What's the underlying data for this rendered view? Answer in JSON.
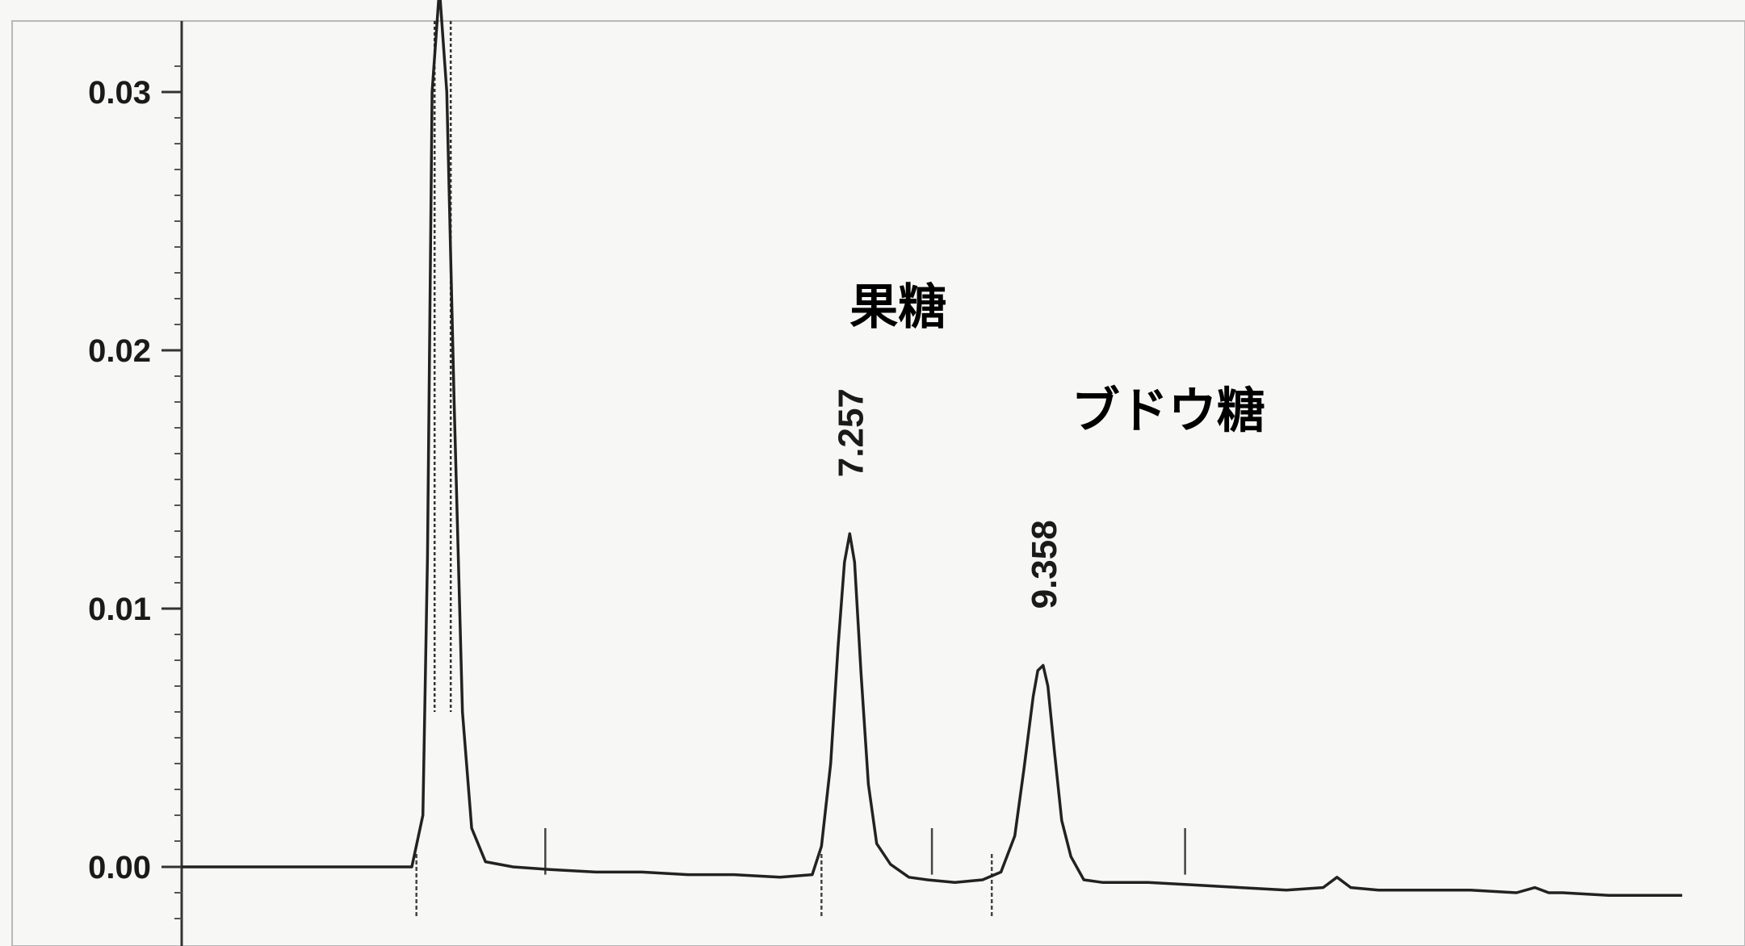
{
  "chart_data": {
    "type": "line",
    "title": "",
    "xlabel": "",
    "ylabel": "",
    "ylim": [
      -0.003,
      0.033
    ],
    "xlim": [
      0,
      16.3
    ],
    "grid": false,
    "legend": "none",
    "y_ticks": [
      "0.03",
      "0.02",
      "0.01",
      "0.00"
    ],
    "y_tick_values": [
      0.03,
      0.02,
      0.01,
      0.0
    ],
    "peaks": [
      {
        "retention_time": 7.257,
        "label": "7.257",
        "height": 0.0129,
        "name": "果糖"
      },
      {
        "retention_time": 9.358,
        "label": "9.358",
        "height": 0.0078,
        "name": "ブドウ糖"
      }
    ],
    "solvent_peak": {
      "retention_time": 2.8,
      "height": 0.034
    },
    "integration_markers": [
      2.55,
      3.95,
      6.95,
      8.15,
      8.8,
      10.9
    ],
    "series": [
      {
        "x": [
          0.0,
          1.5,
          2.5,
          2.62,
          2.67,
          2.72,
          2.8,
          2.88,
          2.96,
          3.05,
          3.15,
          3.3,
          3.6,
          4.0,
          4.5,
          5.0,
          5.5,
          6.0,
          6.5,
          6.85,
          6.95,
          7.05,
          7.13,
          7.2,
          7.257,
          7.31,
          7.38,
          7.46,
          7.55,
          7.7,
          7.9,
          8.1,
          8.4,
          8.7,
          8.9,
          9.05,
          9.15,
          9.25,
          9.3,
          9.358,
          9.41,
          9.48,
          9.56,
          9.66,
          9.8,
          10.0,
          10.5,
          11.0,
          11.5,
          12.0,
          12.4,
          12.55,
          12.7,
          13.0,
          13.5,
          14.0,
          14.5,
          14.7,
          14.85,
          15.0,
          15.5,
          16.0,
          16.3
        ],
        "y": [
          0.0,
          0.0,
          0.0,
          0.002,
          0.012,
          0.03,
          0.034,
          0.03,
          0.018,
          0.006,
          0.0015,
          0.0002,
          0.0,
          -0.0001,
          -0.0002,
          -0.0002,
          -0.0003,
          -0.0003,
          -0.0004,
          -0.0003,
          0.0008,
          0.004,
          0.0085,
          0.0118,
          0.0129,
          0.0118,
          0.0075,
          0.0032,
          0.0009,
          0.0001,
          -0.0004,
          -0.0005,
          -0.0006,
          -0.0005,
          -0.0002,
          0.0012,
          0.0038,
          0.0066,
          0.0076,
          0.0078,
          0.007,
          0.0045,
          0.0018,
          0.0004,
          -0.0005,
          -0.0006,
          -0.0006,
          -0.0007,
          -0.0008,
          -0.0009,
          -0.0008,
          -0.0004,
          -0.0008,
          -0.0009,
          -0.0009,
          -0.0009,
          -0.001,
          -0.0008,
          -0.001,
          -0.001,
          -0.0011,
          -0.0011,
          -0.0011
        ]
      }
    ]
  }
}
